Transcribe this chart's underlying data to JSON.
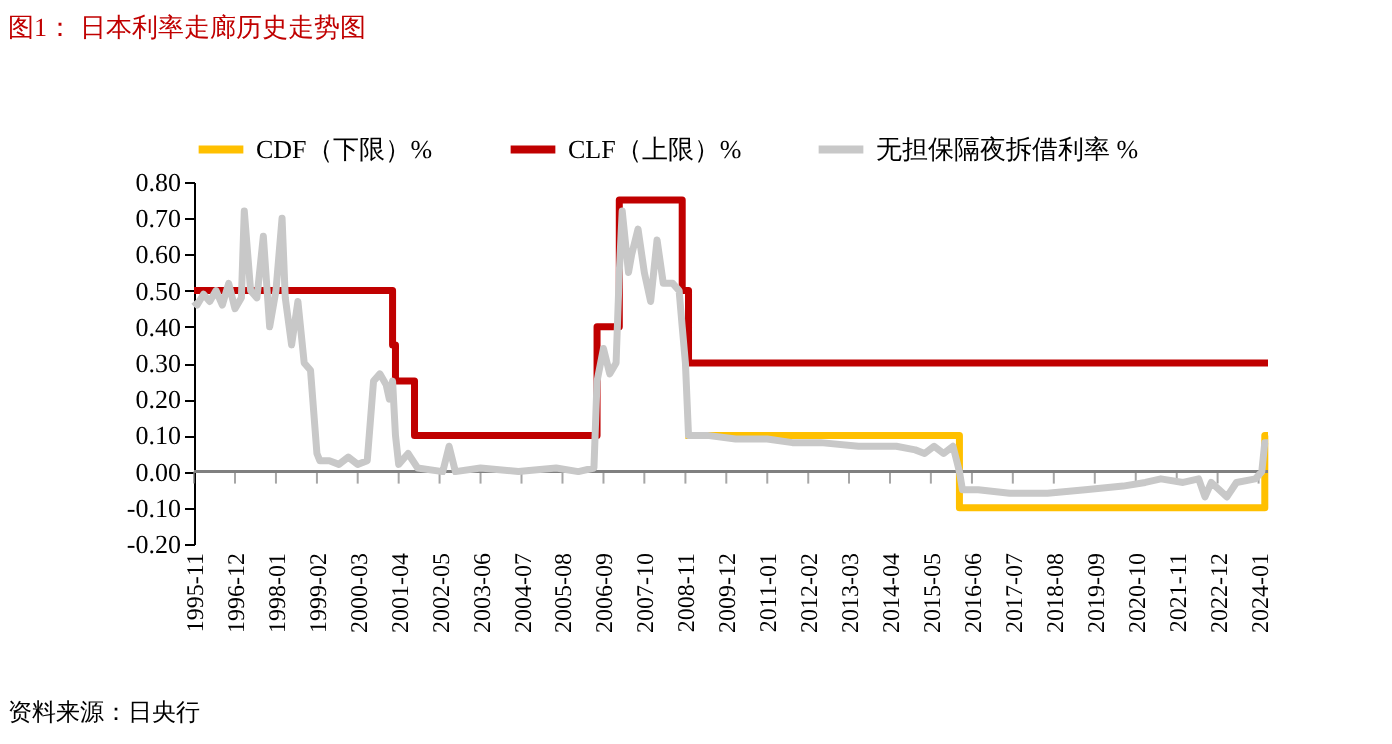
{
  "chart_data": {
    "type": "line",
    "title": "图1： 日本利率走廊历史走势图",
    "annotations": [
      "资料来源：日央行"
    ],
    "legend": "top",
    "grid": false,
    "ref_lines": [
      {
        "axis": "y",
        "value": 0,
        "color": "#808080"
      }
    ],
    "xlim": [
      "1995-11",
      "2024-04"
    ],
    "xticks": [
      "1995-11",
      "1996-12",
      "1998-01",
      "1999-02",
      "2000-03",
      "2001-04",
      "2002-05",
      "2003-06",
      "2004-07",
      "2005-08",
      "2006-09",
      "2007-10",
      "2008-11",
      "2009-12",
      "2011-01",
      "2012-02",
      "2013-03",
      "2014-04",
      "2015-05",
      "2016-06",
      "2017-07",
      "2018-08",
      "2019-09",
      "2020-10",
      "2021-11",
      "2022-12",
      "2024-01"
    ],
    "ylim": [
      -0.2,
      0.8
    ],
    "yticks": [
      {
        "value": -0.2,
        "label": "-0.20"
      },
      {
        "value": -0.1,
        "label": "-0.10"
      },
      {
        "value": 0,
        "label": "0.00"
      },
      {
        "value": 0.1,
        "label": "0.10"
      },
      {
        "value": 0.2,
        "label": "0.20"
      },
      {
        "value": 0.3,
        "label": "0.30"
      },
      {
        "value": 0.4,
        "label": "0.40"
      },
      {
        "value": 0.5,
        "label": "0.50"
      },
      {
        "value": 0.6,
        "label": "0.60"
      },
      {
        "value": 0.7,
        "label": "0.70"
      },
      {
        "value": 0.8,
        "label": "0.80"
      }
    ],
    "series": [
      {
        "name": "CDF（下限）%",
        "type": "step",
        "color": "#ffc000",
        "x": [
          "2008-11",
          "2016-02",
          "2024-03",
          "2024-04"
        ],
        "values": [
          0.1,
          -0.1,
          0.1,
          0.1
        ]
      },
      {
        "name": "CLF（上限）%",
        "type": "step",
        "color": "#c00000",
        "x": [
          "1995-11",
          "2001-02",
          "2001-03",
          "2001-09",
          "2006-07",
          "2007-02",
          "2008-10",
          "2008-12",
          "2024-04"
        ],
        "values": [
          0.5,
          0.35,
          0.25,
          0.1,
          0.4,
          0.75,
          0.5,
          0.3,
          0.3
        ]
      },
      {
        "name": "无担保隔夜拆借利率 %",
        "color": "#c8c8c8",
        "x": [
          "1995-11",
          "1995-12",
          "1996-02",
          "1996-04",
          "1996-06",
          "1996-08",
          "1996-10",
          "1996-12",
          "1997-02",
          "1997-03",
          "1997-05",
          "1997-07",
          "1997-09",
          "1997-11",
          "1998-01",
          "1998-03",
          "1998-04",
          "1998-06",
          "1998-08",
          "1998-10",
          "1998-12",
          "1999-02",
          "1999-03",
          "1999-06",
          "1999-09",
          "1999-12",
          "2000-03",
          "2000-06",
          "2000-08",
          "2000-10",
          "2000-12",
          "2001-01",
          "2001-02",
          "2001-03",
          "2001-04",
          "2001-07",
          "2001-10",
          "2002-06",
          "2002-08",
          "2002-10",
          "2003-06",
          "2004-06",
          "2005-06",
          "2006-01",
          "2006-06",
          "2006-07",
          "2006-09",
          "2006-11",
          "2007-01",
          "2007-02",
          "2007-03",
          "2007-05",
          "2007-06",
          "2007-08",
          "2007-10",
          "2007-12",
          "2008-02",
          "2008-04",
          "2008-07",
          "2008-09",
          "2008-10",
          "2008-11",
          "2008-12",
          "2009-03",
          "2009-06",
          "2010-03",
          "2011-01",
          "2011-09",
          "2012-06",
          "2013-06",
          "2014-06",
          "2014-12",
          "2015-03",
          "2015-06",
          "2015-09",
          "2015-12",
          "2016-02",
          "2016-03",
          "2016-08",
          "2017-06",
          "2018-06",
          "2019-06",
          "2020-06",
          "2021-01",
          "2021-06",
          "2022-01",
          "2022-06",
          "2022-08",
          "2022-10",
          "2023-03",
          "2023-06",
          "2023-12",
          "2024-02",
          "2024-03",
          "2024-04"
        ],
        "values": [
          0.47,
          0.46,
          0.49,
          0.47,
          0.5,
          0.46,
          0.52,
          0.45,
          0.48,
          0.72,
          0.5,
          0.48,
          0.65,
          0.4,
          0.5,
          0.7,
          0.48,
          0.35,
          0.47,
          0.3,
          0.28,
          0.05,
          0.03,
          0.03,
          0.02,
          0.04,
          0.02,
          0.03,
          0.25,
          0.27,
          0.24,
          0.2,
          0.25,
          0.1,
          0.02,
          0.05,
          0.01,
          0.0,
          0.07,
          0.0,
          0.01,
          0.0,
          0.01,
          0.0,
          0.01,
          0.25,
          0.34,
          0.27,
          0.3,
          0.55,
          0.72,
          0.55,
          0.6,
          0.67,
          0.55,
          0.47,
          0.64,
          0.52,
          0.52,
          0.5,
          0.4,
          0.3,
          0.1,
          0.1,
          0.1,
          0.09,
          0.09,
          0.08,
          0.08,
          0.07,
          0.07,
          0.06,
          0.05,
          0.07,
          0.05,
          0.07,
          0.0,
          -0.05,
          -0.05,
          -0.06,
          -0.06,
          -0.05,
          -0.04,
          -0.03,
          -0.02,
          -0.03,
          -0.02,
          -0.07,
          -0.03,
          -0.07,
          -0.03,
          -0.02,
          0.0,
          0.08,
          0.08
        ]
      }
    ]
  }
}
